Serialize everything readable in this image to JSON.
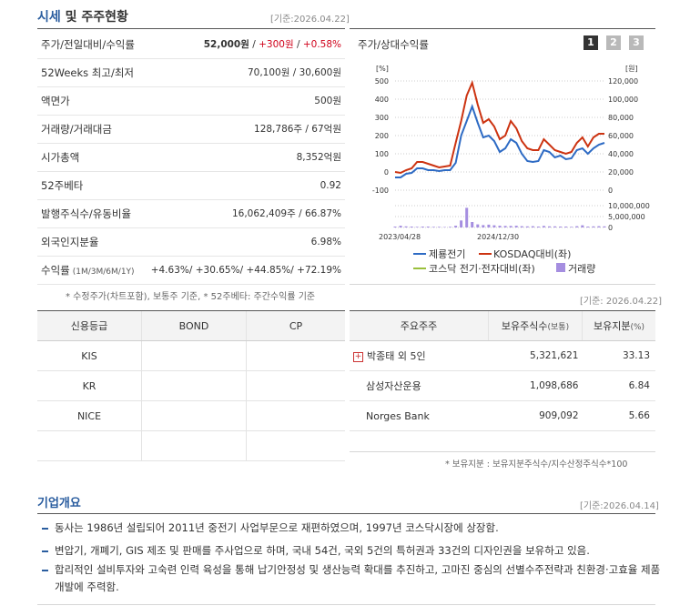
{
  "section": {
    "title_accent": "시세",
    "title_rest": " 및 주주현황",
    "date": "[기준:2026.04.22]"
  },
  "stats": [
    {
      "label": "주가/전일대비/수익률",
      "value_html": "p"
    },
    {
      "label": "52Weeks 최고/최저",
      "value": "70,100원 / 30,600원"
    },
    {
      "label": "액면가",
      "value": "500원"
    },
    {
      "label": "거래량/거래대금",
      "value": "128,786주 / 67억원"
    },
    {
      "label": "시가총액",
      "value": "8,352억원"
    },
    {
      "label": "52주베타",
      "value": "0.92"
    },
    {
      "label": "발행주식수/유동비율",
      "value": "16,062,409주 / 66.87%"
    },
    {
      "label": "외국인지분율",
      "value": "6.98%"
    },
    {
      "label": "수익률",
      "sub": "(1M/3M/6M/1Y)",
      "value": "+4.63%/ +30.65%/ +44.85%/ +72.19%"
    }
  ],
  "price": {
    "price": "52,000원",
    "sep1": " / ",
    "change": "+300원",
    "sep2": " / ",
    "rate": "+0.58%"
  },
  "note1": "* 수정주가(차트포함), 보통주 기준, * 52주베타: 주간수익률 기준",
  "chart": {
    "title": "주가/상대수익률",
    "pages": [
      "1",
      "2",
      "3"
    ],
    "left_unit": "[%]",
    "right_unit": "[원]",
    "left_ticks": [
      "500",
      "400",
      "300",
      "200",
      "100",
      "0",
      "-100"
    ],
    "right_ticks": [
      "120,000",
      "100,000",
      "80,000",
      "60,000",
      "40,000",
      "20,000",
      "0"
    ],
    "vol_ticks": [
      "10,000,000",
      "5,000,000",
      "0"
    ],
    "x_labels": [
      "2023/04/28",
      "2024/12/30"
    ],
    "legend": [
      "제룡전기",
      "KOSDAQ대비(좌)",
      "코스닥 전기·전자대비(좌)",
      "거래량"
    ],
    "colors": {
      "stock": "#2e6bc4",
      "kosdaq": "#cc3311",
      "sector": "#9ac03c",
      "volume": "#a58ee0"
    }
  },
  "chart_data": {
    "type": "line",
    "y_left_range": [
      -100,
      500
    ],
    "y_right_range": [
      0,
      120000
    ],
    "series": [
      {
        "name": "제룡전기",
        "values": [
          -30,
          -30,
          -10,
          -5,
          20,
          20,
          10,
          10,
          5,
          10,
          10,
          50,
          200,
          280,
          360,
          270,
          190,
          200,
          170,
          110,
          130,
          180,
          160,
          100,
          60,
          55,
          60,
          120,
          110,
          80,
          90,
          70,
          75,
          120,
          130,
          100,
          130,
          150,
          160
        ]
      },
      {
        "name": "KOSDAQ대비(좌)",
        "values": [
          0,
          -5,
          10,
          20,
          55,
          55,
          45,
          35,
          25,
          30,
          35,
          160,
          280,
          420,
          490,
          370,
          270,
          290,
          250,
          180,
          200,
          280,
          240,
          170,
          130,
          120,
          120,
          180,
          150,
          120,
          110,
          100,
          110,
          160,
          190,
          140,
          190,
          210,
          210
        ]
      },
      {
        "name": "거래량",
        "values": [
          0.4,
          0.8,
          0.5,
          0.4,
          0.3,
          0.4,
          0.4,
          0.3,
          0.3,
          0.2,
          0.3,
          0.8,
          3.2,
          9.0,
          2.5,
          1.4,
          1.1,
          1.3,
          1.0,
          0.8,
          0.7,
          0.7,
          0.8,
          0.6,
          0.5,
          0.6,
          0.4,
          0.7,
          0.5,
          0.5,
          0.4,
          0.4,
          0.3,
          0.6,
          1.0,
          0.4,
          0.5,
          0.6,
          0.5
        ]
      }
    ]
  },
  "date2": "[기준: 2026.04.22]",
  "credit": {
    "headers": [
      "신용등급",
      "BOND",
      "CP"
    ],
    "rows": [
      [
        "KIS",
        "",
        ""
      ],
      [
        "KR",
        "",
        ""
      ],
      [
        "NICE",
        "",
        ""
      ],
      [
        "",
        "",
        ""
      ]
    ]
  },
  "holders": {
    "headers": [
      "주요주주",
      "보유주식수",
      "(보통)",
      "보유지분",
      "(%)"
    ],
    "rows": [
      {
        "name": "박종태 외 5인",
        "shares": "5,321,621",
        "pct": "33.13"
      },
      {
        "name": "삼성자산운용",
        "shares": "1,098,686",
        "pct": "6.84"
      },
      {
        "name": "Norges Bank",
        "shares": "909,092",
        "pct": "5.66"
      }
    ]
  },
  "note2": "* 보유지분 : 보유지분주식수/지수산정주식수*100",
  "corp": {
    "title": "기업개요",
    "date": "[기준:2026.04.14]",
    "bullets": [
      "동사는 1986년 설립되어 2011년 중전기 사업부문으로 재편하였으며, 1997년 코스닥시장에 상장함.",
      "변압기, 개폐기, GIS 제조 및 판매를 주사업으로 하며, 국내 54건, 국외 5건의 특허권과 33건의 디자인권을 보유하고 있음.",
      "합리적인 설비투자와 고숙련 인력 육성을 통해 납기안정성 및 생산능력 확대를 추진하고, 고마진 중심의 선별수주전략과 친환경·고효율 제품 개발에 주력함."
    ]
  }
}
